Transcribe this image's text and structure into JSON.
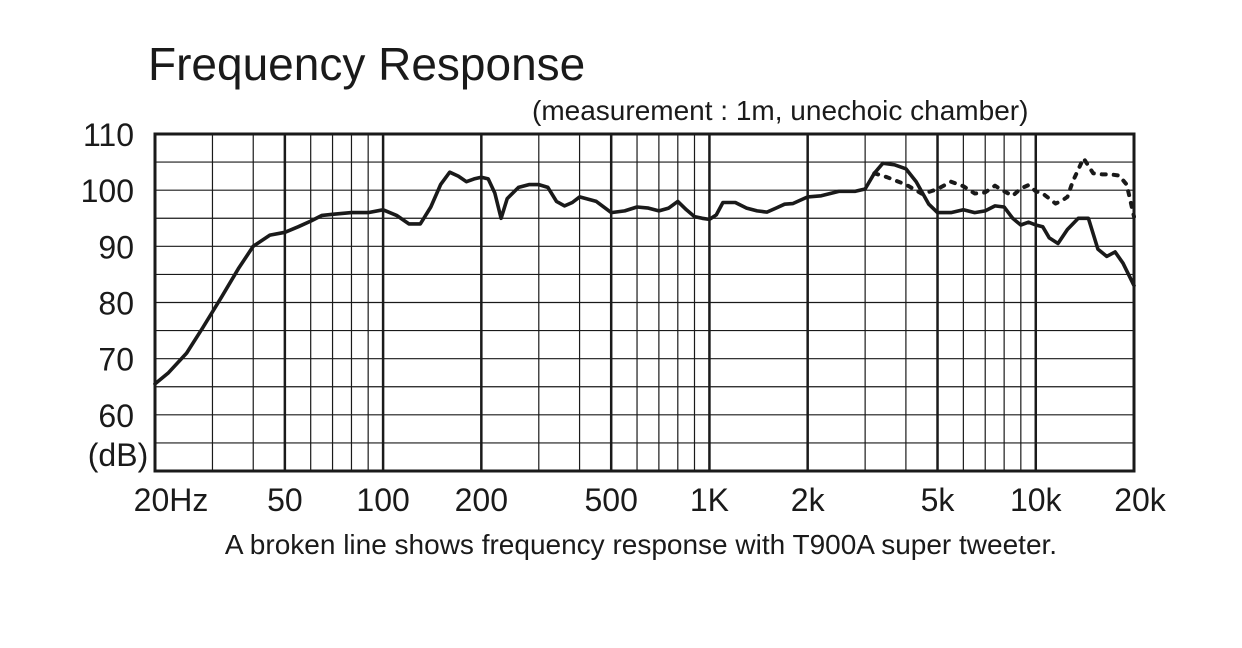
{
  "chart_data": {
    "type": "line",
    "title": "Frequency Response",
    "subtitle": "(measurement : 1m, unechoic chamber)",
    "caption": "A broken line shows frequency response with T900A super tweeter.",
    "ylabel": "(dB)",
    "x_scale": "log",
    "xlim": [
      20,
      20000
    ],
    "ylim": [
      50,
      110
    ],
    "y_ticks": [
      110,
      100,
      90,
      80,
      70,
      60
    ],
    "x_ticks": [
      {
        "value": 20,
        "label": "20Hz"
      },
      {
        "value": 50,
        "label": "50"
      },
      {
        "value": 100,
        "label": "100"
      },
      {
        "value": 200,
        "label": "200"
      },
      {
        "value": 500,
        "label": "500"
      },
      {
        "value": 1000,
        "label": "1K"
      },
      {
        "value": 2000,
        "label": "2k"
      },
      {
        "value": 5000,
        "label": "5k"
      },
      {
        "value": 10000,
        "label": "10k"
      },
      {
        "value": 20000,
        "label": "20k"
      }
    ],
    "grid": true,
    "series": [
      {
        "style": "solid",
        "points": [
          [
            20,
            65.5
          ],
          [
            22,
            67.5
          ],
          [
            25,
            71
          ],
          [
            28,
            75.5
          ],
          [
            32,
            81
          ],
          [
            36,
            86
          ],
          [
            40,
            90
          ],
          [
            45,
            92
          ],
          [
            50,
            92.5
          ],
          [
            55,
            93.5
          ],
          [
            60,
            94.5
          ],
          [
            65,
            95.5
          ],
          [
            70,
            95.7
          ],
          [
            80,
            96
          ],
          [
            90,
            96
          ],
          [
            100,
            96.5
          ],
          [
            110,
            95.5
          ],
          [
            120,
            94
          ],
          [
            130,
            94
          ],
          [
            140,
            97
          ],
          [
            150,
            101
          ],
          [
            160,
            103.2
          ],
          [
            170,
            102.5
          ],
          [
            180,
            101.5
          ],
          [
            190,
            102
          ],
          [
            200,
            102.3
          ],
          [
            210,
            102
          ],
          [
            220,
            99.5
          ],
          [
            230,
            95
          ],
          [
            240,
            98.5
          ],
          [
            260,
            100.5
          ],
          [
            280,
            101
          ],
          [
            300,
            101
          ],
          [
            320,
            100.5
          ],
          [
            340,
            98
          ],
          [
            360,
            97.2
          ],
          [
            380,
            97.8
          ],
          [
            400,
            98.8
          ],
          [
            450,
            98
          ],
          [
            500,
            96
          ],
          [
            550,
            96.3
          ],
          [
            600,
            97
          ],
          [
            650,
            96.8
          ],
          [
            700,
            96.3
          ],
          [
            750,
            96.8
          ],
          [
            800,
            98
          ],
          [
            850,
            96.5
          ],
          [
            900,
            95.3
          ],
          [
            950,
            95
          ],
          [
            1000,
            94.8
          ],
          [
            1050,
            95.6
          ],
          [
            1100,
            97.8
          ],
          [
            1200,
            97.8
          ],
          [
            1300,
            96.8
          ],
          [
            1400,
            96.3
          ],
          [
            1500,
            96.1
          ],
          [
            1600,
            96.8
          ],
          [
            1700,
            97.5
          ],
          [
            1800,
            97.6
          ],
          [
            2000,
            98.8
          ],
          [
            2200,
            99
          ],
          [
            2500,
            99.8
          ],
          [
            2800,
            99.8
          ],
          [
            3000,
            100.2
          ],
          [
            3200,
            103
          ],
          [
            3400,
            104.8
          ],
          [
            3700,
            104.5
          ],
          [
            4000,
            103.8
          ],
          [
            4300,
            101.5
          ],
          [
            4700,
            97.5
          ],
          [
            5000,
            96
          ],
          [
            5500,
            96
          ],
          [
            6000,
            96.5
          ],
          [
            6500,
            96
          ],
          [
            7000,
            96.3
          ],
          [
            7500,
            97.2
          ],
          [
            8000,
            97
          ],
          [
            8500,
            95
          ],
          [
            9000,
            93.8
          ],
          [
            9500,
            94.3
          ],
          [
            10000,
            93.8
          ],
          [
            10500,
            93.5
          ],
          [
            11000,
            91.5
          ],
          [
            11700,
            90.5
          ],
          [
            12500,
            93
          ],
          [
            13500,
            95
          ],
          [
            14500,
            95
          ],
          [
            15500,
            89.5
          ],
          [
            16500,
            88.2
          ],
          [
            17500,
            89
          ],
          [
            18500,
            87
          ],
          [
            20000,
            83
          ]
        ]
      },
      {
        "style": "dotted",
        "points": [
          [
            3200,
            103
          ],
          [
            3500,
            102.3
          ],
          [
            4000,
            101
          ],
          [
            4500,
            99.3
          ],
          [
            5000,
            100.2
          ],
          [
            5500,
            101.5
          ],
          [
            6000,
            100.7
          ],
          [
            6500,
            99.4
          ],
          [
            7000,
            99.6
          ],
          [
            7500,
            100.8
          ],
          [
            8000,
            99.8
          ],
          [
            8500,
            99
          ],
          [
            9000,
            100.3
          ],
          [
            9500,
            100.9
          ],
          [
            10000,
            99.8
          ],
          [
            10500,
            99.4
          ],
          [
            11000,
            98.5
          ],
          [
            11500,
            97.6
          ],
          [
            12000,
            98.1
          ],
          [
            12500,
            98.8
          ],
          [
            13000,
            101.6
          ],
          [
            14000,
            105.7
          ],
          [
            15000,
            103
          ],
          [
            16000,
            102.8
          ],
          [
            17000,
            102.8
          ],
          [
            18000,
            102.6
          ],
          [
            19000,
            101
          ],
          [
            20000,
            95.3
          ]
        ]
      }
    ]
  }
}
